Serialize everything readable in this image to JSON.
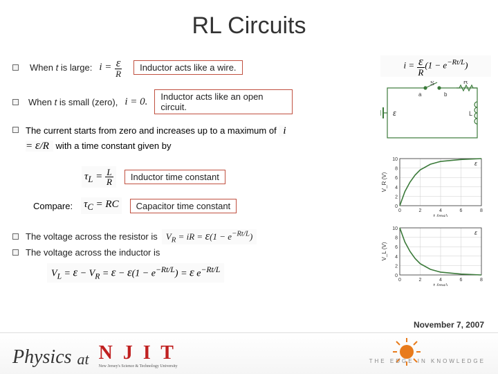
{
  "title": "RL Circuits",
  "bullets": {
    "b1_pre": "When ",
    "b1_var": "t",
    "b1_post": " is large:",
    "b1_formula_num": "ε",
    "b1_formula_den": "R",
    "b1_formula_lhs": "i = ",
    "b1_box": "Inductor acts like a wire.",
    "b2_pre": "When ",
    "b2_var": "t",
    "b2_post": " is small (zero), ",
    "b2_eq": "i = 0.",
    "b2_box": "Inductor acts like an open circuit.",
    "b3_text_a": "The current starts from zero and increases up to a maximum of ",
    "b3_formula": "i = ε / R",
    "b3_text_b": " with a time constant given by"
  },
  "tau_L": {
    "lhs": "τ",
    "sub": "L",
    "eq": " = ",
    "num": "L",
    "den": "R"
  },
  "tau_box1": "Inductor time constant",
  "compare_label": "Compare:",
  "tau_C": {
    "lhs": "τ",
    "sub": "C",
    "eq": " = RC"
  },
  "tau_box2": "Capacitor time constant",
  "voltage": {
    "r_text": "The voltage across the resistor is",
    "r_formula": "V_R = iR = ε(1 − e^{−Rt/L})",
    "l_text": "The voltage across the inductor is",
    "l_formula": "V_L = ε − V_R = ε − ε(1 − e^{−Rt/L}) = ε e^{−Rt/L}"
  },
  "top_formula": "i = (ε/R)(1 − e^{−Rt/L})",
  "date": "November 7, 2007",
  "footer": {
    "physics": "Physics",
    "at": "at",
    "njit": "N J I T",
    "njit_sub": "New Jersey's Science & Technology University",
    "edge": "THE EDGE IN KNOWLEDGE"
  },
  "chart1": {
    "type": "line",
    "ylabel": "V_R (V)",
    "xlabel": "t (ms)",
    "xlim": [
      0,
      8
    ],
    "ylim": [
      0,
      10
    ],
    "xticks": [
      0,
      2,
      4,
      6,
      8
    ],
    "yticks": [
      0,
      2,
      4,
      6,
      8,
      10
    ],
    "curve_color": "#3b7a3a",
    "grid_color": "#cccccc",
    "bg": "#ffffff",
    "points": [
      [
        0,
        0
      ],
      [
        0.5,
        3.0
      ],
      [
        1,
        5.0
      ],
      [
        1.5,
        6.5
      ],
      [
        2,
        7.6
      ],
      [
        3,
        8.8
      ],
      [
        4,
        9.4
      ],
      [
        6,
        9.8
      ],
      [
        8,
        10.0
      ]
    ]
  },
  "chart2": {
    "type": "line",
    "ylabel": "V_L (V)",
    "xlabel": "t (ms)",
    "xlim": [
      0,
      8
    ],
    "ylim": [
      0,
      10
    ],
    "xticks": [
      0,
      2,
      4,
      6,
      8
    ],
    "yticks": [
      0,
      2,
      4,
      6,
      8,
      10
    ],
    "curve_color": "#3b7a3a",
    "grid_color": "#cccccc",
    "bg": "#ffffff",
    "points": [
      [
        0,
        10
      ],
      [
        0.5,
        7.0
      ],
      [
        1,
        5.0
      ],
      [
        1.5,
        3.5
      ],
      [
        2,
        2.4
      ],
      [
        3,
        1.2
      ],
      [
        4,
        0.6
      ],
      [
        6,
        0.2
      ],
      [
        8,
        0.0
      ]
    ]
  },
  "circuit": {
    "emf_label": "ε",
    "switch_label": "S",
    "labels": [
      "a",
      "b",
      "L",
      "R"
    ],
    "line_color": "#3b7a3a"
  }
}
